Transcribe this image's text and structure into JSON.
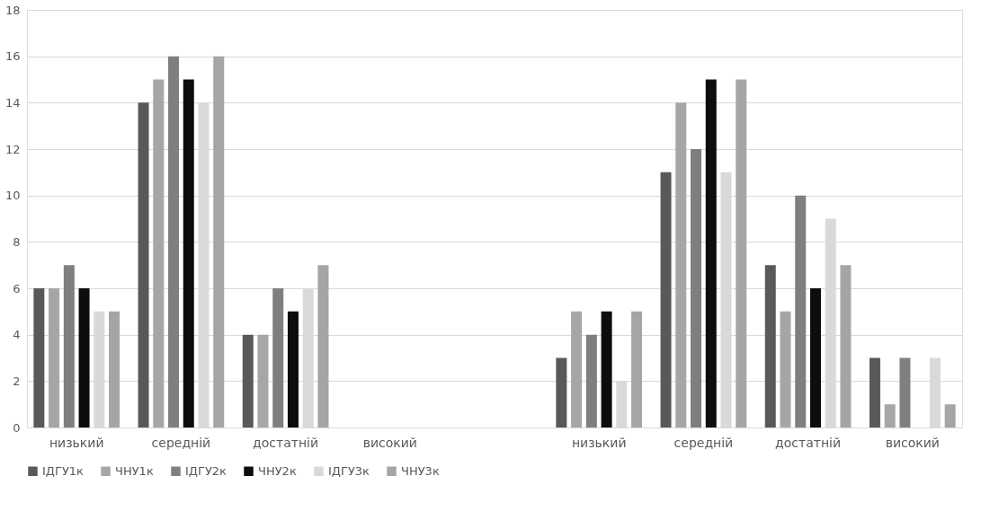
{
  "chart_data": {
    "type": "bar",
    "categories": [
      "низький",
      "середній",
      "достатній",
      "високий",
      null,
      "низький",
      "середній",
      "достатній",
      "високий"
    ],
    "series": [
      {
        "name": "ІДГУ1к",
        "color": "#595959",
        "values": [
          6,
          14,
          4,
          0,
          null,
          3,
          11,
          7,
          3
        ]
      },
      {
        "name": "ЧНУ1к",
        "color": "#a6a6a6",
        "values": [
          6,
          15,
          4,
          0,
          null,
          5,
          14,
          5,
          1
        ]
      },
      {
        "name": "ІДГУ2к",
        "color": "#7f7f7f",
        "values": [
          7,
          16,
          6,
          0,
          null,
          4,
          12,
          10,
          3
        ]
      },
      {
        "name": "ЧНУ2к",
        "color": "#0d0d0d",
        "values": [
          6,
          15,
          5,
          0,
          null,
          5,
          15,
          6,
          0
        ]
      },
      {
        "name": "ІДГУ3к",
        "color": "#d9d9d9",
        "values": [
          5,
          14,
          6,
          0,
          null,
          2,
          11,
          9,
          3
        ]
      },
      {
        "name": "ЧНУ3к",
        "color": "#a5a5a5",
        "values": [
          5,
          16,
          7,
          0,
          null,
          5,
          15,
          7,
          1
        ]
      }
    ],
    "ylim": [
      0,
      18
    ],
    "yticks": [
      0,
      2,
      4,
      6,
      8,
      10,
      12,
      14,
      16,
      18
    ],
    "grid": "y",
    "legend": "bottom"
  }
}
